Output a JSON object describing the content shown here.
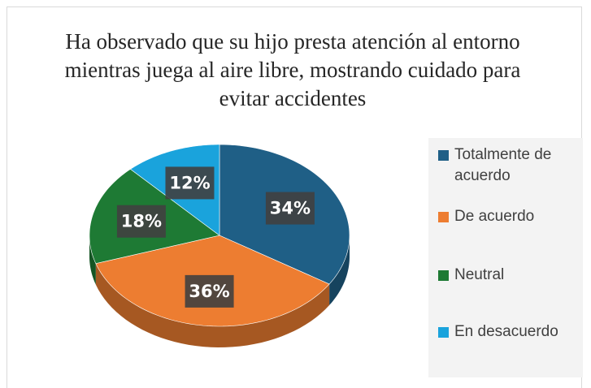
{
  "chart_data": {
    "type": "pie",
    "title": "Ha observado que su hijo presta atención al entorno mientras juega al aire libre, mostrando cuidado para evitar accidentes",
    "categories": [
      "Totalmente de acuerdo",
      "De acuerdo",
      "Neutral",
      "En desacuerdo"
    ],
    "values": [
      34,
      36,
      18,
      12
    ],
    "value_labels": [
      "34%",
      "36%",
      "18%",
      "12%"
    ],
    "colors": [
      "#1f5f86",
      "#ed7d31",
      "#1e7a34",
      "#1aa3dc"
    ],
    "legend": "right"
  }
}
